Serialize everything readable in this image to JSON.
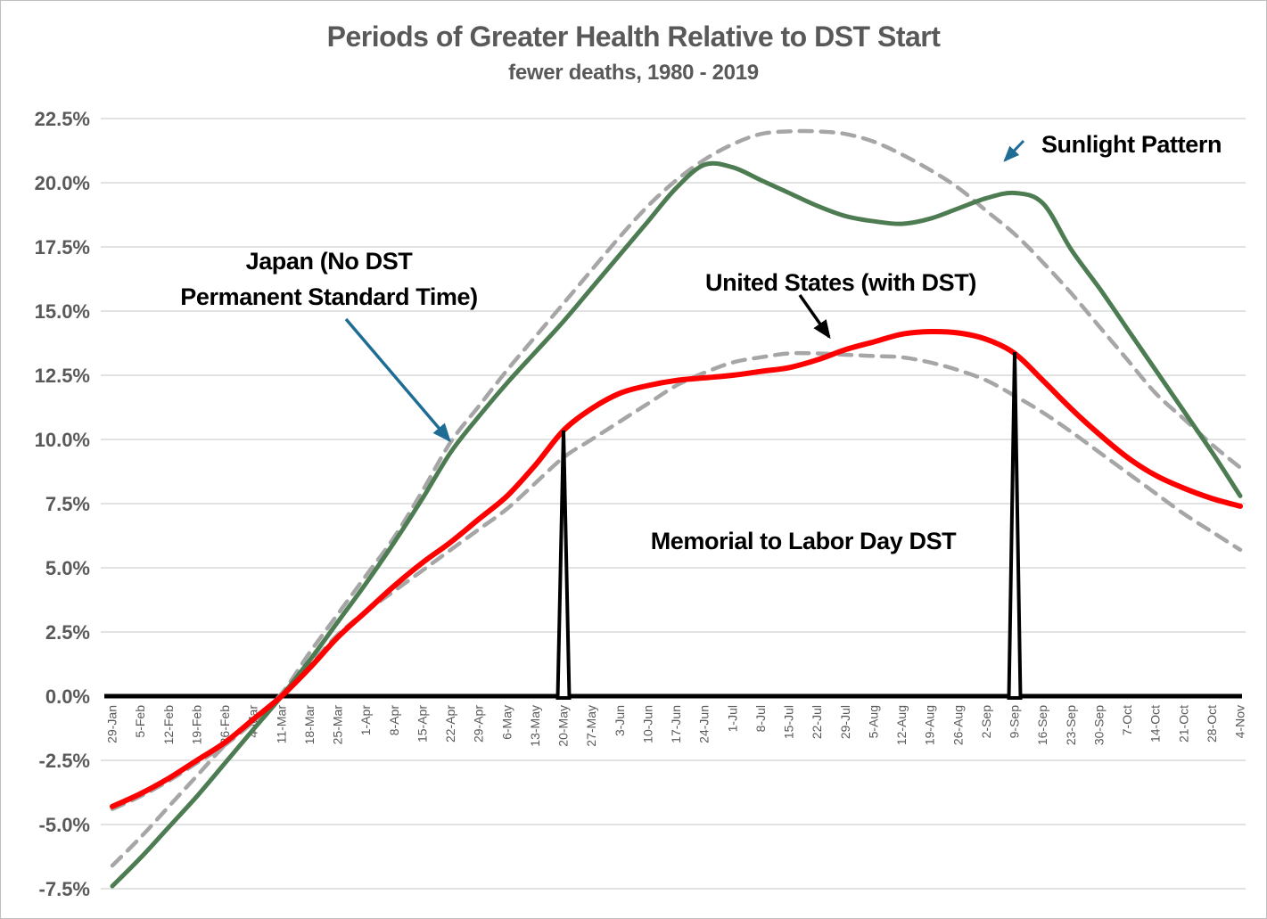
{
  "header": {
    "title": "Periods of Greater Health Relative to DST Start",
    "subtitle": "fewer deaths, 1980 - 2019",
    "text_color": "#595959"
  },
  "annotations": {
    "japan": {
      "line1": "Japan (No DST",
      "line2": "Permanent Standard Time)",
      "arrow_color": "#1f6c94"
    },
    "us": {
      "text": "United States (with DST)",
      "arrow_color": "#000000"
    },
    "sunlight": {
      "text": "Sunlight Pattern",
      "arrow_color": "#1f6c94"
    },
    "memorial": {
      "text": "Memorial to Labor Day DST"
    }
  },
  "axis": {
    "label_color": "#595959",
    "grid_color": "#d9d9d9",
    "zero_line_color": "#000000"
  },
  "chart_data": {
    "type": "line",
    "title": "Periods of Greater Health Relative to DST Start",
    "subtitle": "fewer deaths, 1980 - 2019",
    "xlabel": "",
    "ylabel": "",
    "ylim": [
      -7.5,
      22.5
    ],
    "ytick_step": 2.5,
    "ytick_format": "percent_one_decimal",
    "grid": "horizontal",
    "legend_position": "none (labeled by on-chart annotations)",
    "categories": [
      "29-Jan",
      "5-Feb",
      "12-Feb",
      "19-Feb",
      "26-Feb",
      "4-Mar",
      "11-Mar",
      "18-Mar",
      "25-Mar",
      "1-Apr",
      "8-Apr",
      "15-Apr",
      "22-Apr",
      "29-Apr",
      "6-May",
      "13-May",
      "20-May",
      "27-May",
      "3-Jun",
      "10-Jun",
      "17-Jun",
      "24-Jun",
      "1-Jul",
      "8-Jul",
      "15-Jul",
      "22-Jul",
      "29-Jul",
      "5-Aug",
      "12-Aug",
      "19-Aug",
      "26-Aug",
      "2-Sep",
      "9-Sep",
      "16-Sep",
      "23-Sep",
      "30-Sep",
      "7-Oct",
      "14-Oct",
      "21-Oct",
      "28-Oct",
      "4-Nov"
    ],
    "series": [
      {
        "name": "Sunlight Pattern (Japan scale)",
        "color": "#a6a6a6",
        "style": "dashed",
        "values": [
          -6.6,
          -5.5,
          -4.3,
          -3.1,
          -1.9,
          -0.9,
          0.1,
          1.7,
          3.2,
          4.7,
          6.2,
          8.0,
          9.9,
          11.3,
          12.7,
          14.0,
          15.3,
          16.6,
          17.9,
          19.1,
          20.1,
          20.9,
          21.5,
          21.9,
          22.0,
          22.0,
          21.9,
          21.6,
          21.1,
          20.5,
          19.8,
          18.9,
          18.0,
          16.9,
          15.7,
          14.4,
          13.1,
          11.8,
          10.8,
          9.8,
          8.9
        ]
      },
      {
        "name": "Sunlight Pattern (US scale)",
        "color": "#a6a6a6",
        "style": "dashed",
        "values": [
          -4.4,
          -3.9,
          -3.3,
          -2.6,
          -1.9,
          -1.0,
          0.0,
          1.2,
          2.4,
          3.3,
          4.1,
          4.9,
          5.7,
          6.5,
          7.3,
          8.3,
          9.3,
          10.0,
          10.7,
          11.4,
          12.1,
          12.6,
          13.0,
          13.2,
          13.35,
          13.35,
          13.3,
          13.25,
          13.2,
          13.0,
          12.7,
          12.3,
          11.7,
          11.05,
          10.3,
          9.5,
          8.7,
          7.9,
          7.1,
          6.4,
          5.7
        ]
      },
      {
        "name": "Japan (No DST Permanent Standard Time)",
        "color": "#4d7c52",
        "style": "solid",
        "values": [
          -7.4,
          -6.3,
          -5.1,
          -3.9,
          -2.6,
          -1.3,
          0.0,
          1.4,
          2.9,
          4.4,
          6.0,
          7.7,
          9.5,
          10.9,
          12.2,
          13.4,
          14.6,
          15.9,
          17.2,
          18.5,
          19.8,
          20.7,
          20.6,
          20.1,
          19.6,
          19.1,
          18.7,
          18.5,
          18.4,
          18.6,
          19.0,
          19.4,
          19.6,
          19.2,
          17.4,
          15.9,
          14.3,
          12.7,
          11.1,
          9.5,
          7.8
        ]
      },
      {
        "name": "United States (with DST)",
        "color": "#fe0000",
        "style": "solid",
        "values": [
          -4.3,
          -3.8,
          -3.2,
          -2.5,
          -1.8,
          -0.9,
          0.0,
          1.1,
          2.3,
          3.3,
          4.3,
          5.2,
          6.0,
          6.9,
          7.8,
          9.0,
          10.35,
          11.2,
          11.8,
          12.1,
          12.3,
          12.4,
          12.5,
          12.65,
          12.8,
          13.1,
          13.5,
          13.8,
          14.1,
          14.2,
          14.15,
          13.9,
          13.35,
          12.3,
          11.2,
          10.2,
          9.3,
          8.6,
          8.1,
          7.7,
          7.4
        ]
      },
      {
        "name": "Memorial to Labor Day DST (indicator)",
        "color": "#000000",
        "style": "spike-baseline",
        "values": [
          0,
          0,
          0,
          0,
          0,
          0,
          0,
          0,
          0,
          0,
          0,
          0,
          0,
          0,
          0,
          0,
          10.35,
          0,
          0,
          0,
          0,
          0,
          0,
          0,
          0,
          0,
          0,
          0,
          0,
          0,
          0,
          0,
          13.4,
          0,
          0,
          0,
          0,
          0,
          0,
          0,
          0
        ]
      }
    ],
    "spike_notes": [
      {
        "category": "20-May",
        "value": 10.35,
        "meaning": "Memorial Day DST boundary"
      },
      {
        "category": "9-Sep",
        "value": 13.4,
        "meaning": "Labor Day DST boundary"
      }
    ]
  }
}
